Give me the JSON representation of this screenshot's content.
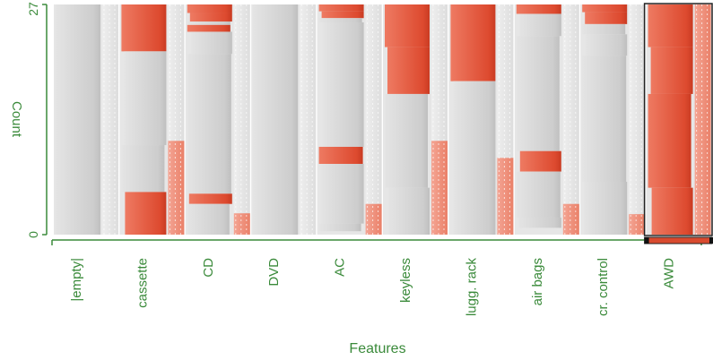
{
  "chart_data": {
    "type": "bar",
    "xlabel": "Features",
    "ylabel": "Count",
    "ylim": [
      0,
      27
    ],
    "y_ticks": [
      "0",
      "27"
    ],
    "categories": [
      "|empty|",
      "cassette",
      "CD",
      "DVD",
      "AC",
      "keyless",
      "lugg. rack",
      "air bags",
      "cr. control",
      "AWD"
    ],
    "selected_category": "AWD",
    "colors": {
      "selected": "#e0563c",
      "unselected": "#d4d4d4",
      "background": "#e6e6e6",
      "accent": "#3a8a3a"
    },
    "columns": [
      {
        "name": "|empty|",
        "segments": [
          {
            "value": 27,
            "selected": 0
          }
        ],
        "side_bar": 0
      },
      {
        "name": "cassette",
        "segments": [
          {
            "value": 5.5,
            "selected": 5.5
          },
          {
            "value": 11,
            "selected": 0
          },
          {
            "value": 5.5,
            "selected": 0
          },
          {
            "value": 5,
            "selected": 5
          }
        ],
        "side_bar": 11
      },
      {
        "name": "CD",
        "segments": [
          {
            "value": 1,
            "selected": 1
          },
          {
            "value": 1,
            "selected": 1
          },
          {
            "value": 1.2,
            "selected": 0.8
          },
          {
            "value": 2.6,
            "selected": 0
          },
          {
            "value": 16.4,
            "selected": 0
          },
          {
            "value": 1.2,
            "selected": 1.2
          },
          {
            "value": 3.6,
            "selected": 0
          }
        ],
        "side_bar": 2.5
      },
      {
        "name": "DVD",
        "segments": [
          {
            "value": 27,
            "selected": 0
          }
        ],
        "side_bar": 0
      },
      {
        "name": "AC",
        "segments": [
          {
            "value": 0.8,
            "selected": 0.8
          },
          {
            "value": 0.8,
            "selected": 0.8
          },
          {
            "value": 0.5,
            "selected": 0
          },
          {
            "value": 14.6,
            "selected": 0
          },
          {
            "value": 2,
            "selected": 2
          },
          {
            "value": 7,
            "selected": 0
          },
          {
            "value": 0.9,
            "selected": 0
          }
        ],
        "side_bar": 3.6
      },
      {
        "name": "keyless",
        "segments": [
          {
            "value": 5,
            "selected": 5
          },
          {
            "value": 5.5,
            "selected": 5.5
          },
          {
            "value": 11,
            "selected": 0
          },
          {
            "value": 5.5,
            "selected": 0
          }
        ],
        "side_bar": 11
      },
      {
        "name": "lugg. rack",
        "segments": [
          {
            "value": 9,
            "selected": 9
          },
          {
            "value": 18,
            "selected": 0
          }
        ],
        "side_bar": 9
      },
      {
        "name": "air bags",
        "segments": [
          {
            "value": 1.1,
            "selected": 1.1
          },
          {
            "value": 2.6,
            "selected": 0
          },
          {
            "value": 13.5,
            "selected": 0
          },
          {
            "value": 2.4,
            "selected": 2.4
          },
          {
            "value": 5.4,
            "selected": 0
          },
          {
            "value": 1.2,
            "selected": 0
          }
        ],
        "side_bar": 3.6
      },
      {
        "name": "cr. control",
        "segments": [
          {
            "value": 0.9,
            "selected": 0.9
          },
          {
            "value": 1.4,
            "selected": 1.4
          },
          {
            "value": 1.2,
            "selected": 0
          },
          {
            "value": 2.5,
            "selected": 0
          },
          {
            "value": 14.8,
            "selected": 0
          },
          {
            "value": 6.2,
            "selected": 0
          }
        ],
        "side_bar": 2.4
      },
      {
        "name": "AWD",
        "segments": [
          {
            "value": 5,
            "selected": 5
          },
          {
            "value": 5.5,
            "selected": 5.5
          },
          {
            "value": 11,
            "selected": 11
          },
          {
            "value": 5.5,
            "selected": 5.5
          }
        ],
        "side_bar": 27
      }
    ]
  }
}
